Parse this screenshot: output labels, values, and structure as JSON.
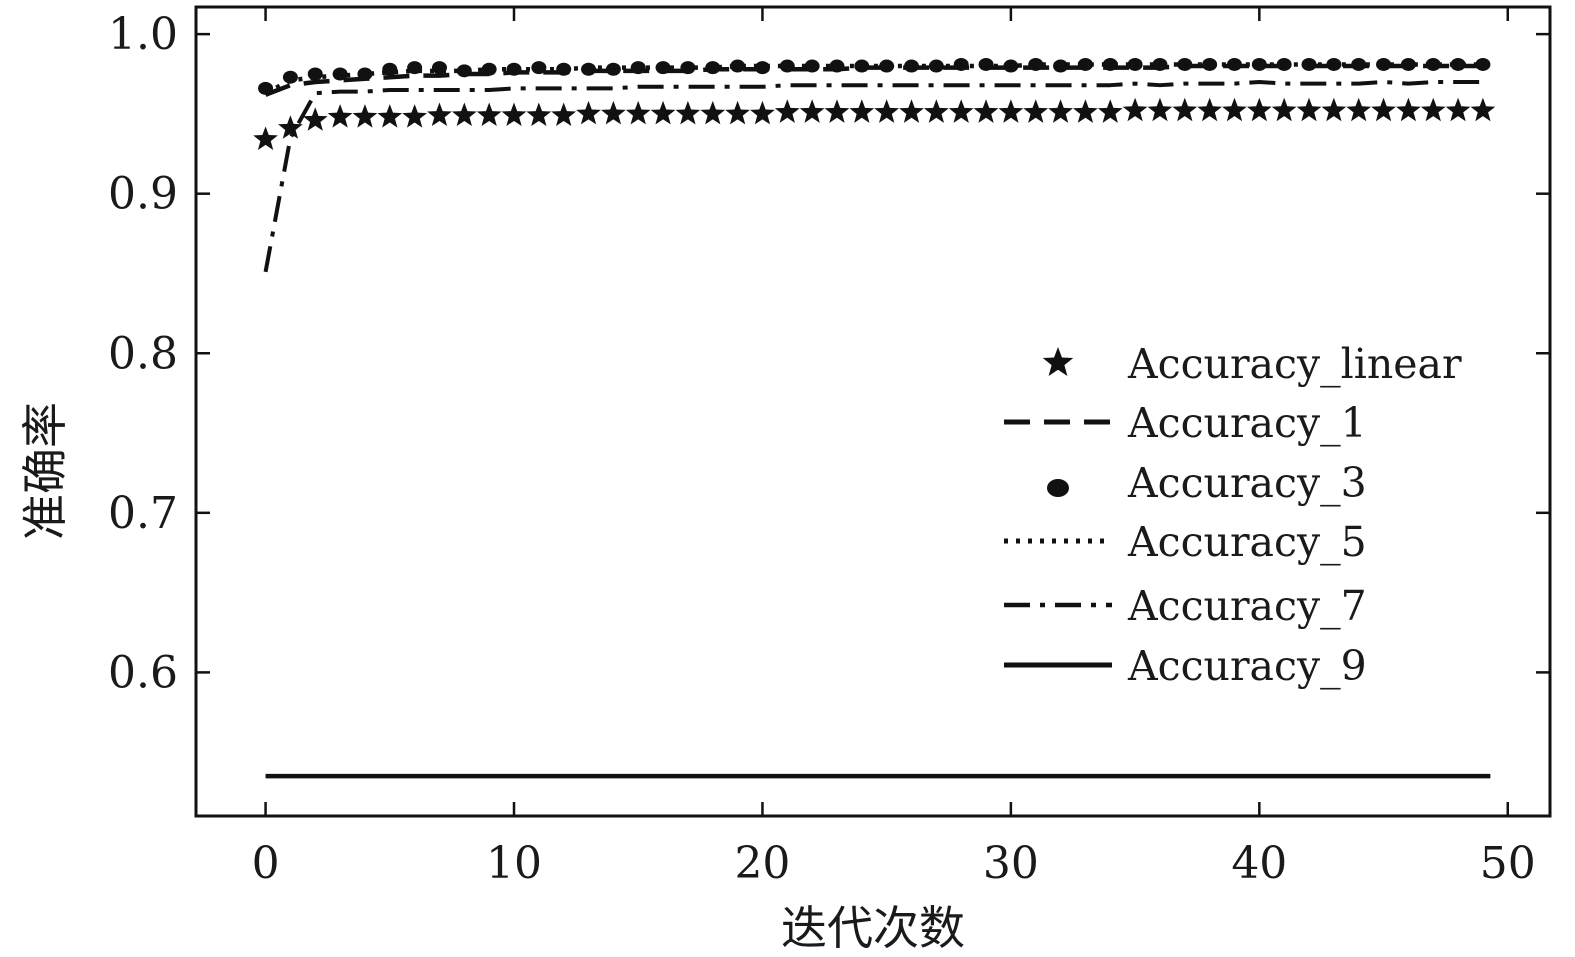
{
  "chart_data": {
    "type": "line",
    "title": "",
    "xlabel": "迭代次数",
    "ylabel": "准确率",
    "xlim": [
      -2.8,
      51.7
    ],
    "ylim": [
      0.51,
      1.017
    ],
    "xticks": [
      0,
      10,
      20,
      30,
      40,
      50
    ],
    "yticks": [
      0.6,
      0.7,
      0.8,
      0.9,
      1.0
    ],
    "xtick_labels": [
      "0",
      "10",
      "20",
      "30",
      "40",
      "50"
    ],
    "ytick_labels": [
      "0.6",
      "0.7",
      "0.8",
      "0.9",
      "1.0"
    ],
    "grid": false,
    "legend_position": "center-right",
    "colors": {
      "ink": "#111111",
      "background": "#ffffff"
    },
    "series": [
      {
        "name": "Accuracy_linear",
        "style": "star",
        "x": [
          0,
          1,
          2,
          3,
          4,
          5,
          6,
          7,
          8,
          9,
          10,
          11,
          12,
          13,
          14,
          15,
          16,
          17,
          18,
          19,
          20,
          21,
          22,
          23,
          24,
          25,
          26,
          27,
          28,
          29,
          30,
          31,
          32,
          33,
          34,
          35,
          36,
          37,
          38,
          39,
          40,
          41,
          42,
          43,
          44,
          45,
          46,
          47,
          48,
          49
        ],
        "values": [
          0.934,
          0.941,
          0.946,
          0.948,
          0.948,
          0.948,
          0.948,
          0.949,
          0.949,
          0.949,
          0.949,
          0.949,
          0.949,
          0.95,
          0.95,
          0.95,
          0.95,
          0.95,
          0.95,
          0.95,
          0.95,
          0.951,
          0.951,
          0.951,
          0.951,
          0.951,
          0.951,
          0.951,
          0.951,
          0.951,
          0.951,
          0.951,
          0.951,
          0.951,
          0.951,
          0.952,
          0.952,
          0.952,
          0.952,
          0.952,
          0.952,
          0.952,
          0.952,
          0.952,
          0.952,
          0.952,
          0.952,
          0.952,
          0.952,
          0.952
        ]
      },
      {
        "name": "Accuracy_1",
        "style": "dashed",
        "x": [
          0,
          1,
          2,
          3,
          4,
          5,
          6,
          7,
          8,
          9,
          10,
          11,
          12,
          13,
          14,
          15,
          16,
          17,
          18,
          19,
          20,
          21,
          22,
          23,
          24,
          25,
          26,
          27,
          28,
          29,
          30,
          31,
          32,
          33,
          34,
          35,
          36,
          37,
          38,
          39,
          40,
          41,
          42,
          43,
          44,
          45,
          46,
          47,
          48,
          49
        ],
        "values": [
          0.962,
          0.968,
          0.97,
          0.971,
          0.972,
          0.973,
          0.974,
          0.974,
          0.975,
          0.975,
          0.976,
          0.976,
          0.976,
          0.977,
          0.977,
          0.977,
          0.977,
          0.977,
          0.978,
          0.978,
          0.978,
          0.978,
          0.978,
          0.978,
          0.979,
          0.979,
          0.979,
          0.979,
          0.979,
          0.979,
          0.979,
          0.979,
          0.979,
          0.979,
          0.979,
          0.979,
          0.979,
          0.98,
          0.98,
          0.98,
          0.98,
          0.98,
          0.98,
          0.98,
          0.98,
          0.98,
          0.98,
          0.98,
          0.98,
          0.98
        ]
      },
      {
        "name": "Accuracy_3",
        "style": "circle",
        "x": [
          0,
          1,
          2,
          3,
          4,
          5,
          6,
          7,
          8,
          9,
          10,
          11,
          12,
          13,
          14,
          15,
          16,
          17,
          18,
          19,
          20,
          21,
          22,
          23,
          24,
          25,
          26,
          27,
          28,
          29,
          30,
          31,
          32,
          33,
          34,
          35,
          36,
          37,
          38,
          39,
          40,
          41,
          42,
          43,
          44,
          45,
          46,
          47,
          48,
          49
        ],
        "values": [
          0.966,
          0.973,
          0.975,
          0.975,
          0.975,
          0.978,
          0.979,
          0.979,
          0.977,
          0.978,
          0.978,
          0.979,
          0.978,
          0.978,
          0.978,
          0.979,
          0.979,
          0.979,
          0.979,
          0.98,
          0.979,
          0.98,
          0.98,
          0.98,
          0.98,
          0.98,
          0.98,
          0.98,
          0.981,
          0.981,
          0.98,
          0.981,
          0.98,
          0.981,
          0.981,
          0.981,
          0.981,
          0.981,
          0.981,
          0.981,
          0.981,
          0.981,
          0.981,
          0.981,
          0.981,
          0.981,
          0.981,
          0.981,
          0.981,
          0.981
        ]
      },
      {
        "name": "Accuracy_5",
        "style": "dotted",
        "x": [
          0,
          1,
          2,
          3,
          4,
          5,
          6,
          7,
          8,
          9,
          10,
          11,
          12,
          13,
          14,
          15,
          16,
          17,
          18,
          19,
          20,
          21,
          22,
          23,
          24,
          25,
          26,
          27,
          28,
          29,
          30,
          31,
          32,
          33,
          34,
          35,
          36,
          37,
          38,
          39,
          40,
          41,
          42,
          43,
          44,
          45,
          46,
          47,
          48,
          49
        ],
        "values": [
          0.963,
          0.971,
          0.973,
          0.974,
          0.975,
          0.976,
          0.977,
          0.977,
          0.977,
          0.978,
          0.978,
          0.978,
          0.978,
          0.979,
          0.979,
          0.979,
          0.979,
          0.979,
          0.979,
          0.98,
          0.98,
          0.98,
          0.98,
          0.98,
          0.98,
          0.98,
          0.98,
          0.98,
          0.98,
          0.98,
          0.98,
          0.981,
          0.981,
          0.981,
          0.981,
          0.981,
          0.981,
          0.981,
          0.981,
          0.981,
          0.981,
          0.981,
          0.981,
          0.981,
          0.981,
          0.981,
          0.981,
          0.981,
          0.981,
          0.981
        ]
      },
      {
        "name": "Accuracy_7",
        "style": "dashdot",
        "x": [
          0,
          1,
          2,
          3,
          4,
          5,
          6,
          7,
          8,
          9,
          10,
          11,
          12,
          13,
          14,
          15,
          16,
          17,
          18,
          19,
          20,
          21,
          22,
          23,
          24,
          25,
          26,
          27,
          28,
          29,
          30,
          31,
          32,
          33,
          34,
          35,
          36,
          37,
          38,
          39,
          40,
          41,
          42,
          43,
          44,
          45,
          46,
          47,
          48,
          49
        ],
        "values": [
          0.851,
          0.935,
          0.963,
          0.964,
          0.964,
          0.965,
          0.965,
          0.965,
          0.965,
          0.965,
          0.966,
          0.966,
          0.966,
          0.966,
          0.966,
          0.967,
          0.967,
          0.967,
          0.967,
          0.967,
          0.967,
          0.968,
          0.968,
          0.968,
          0.968,
          0.968,
          0.968,
          0.968,
          0.968,
          0.968,
          0.968,
          0.968,
          0.968,
          0.968,
          0.968,
          0.969,
          0.968,
          0.969,
          0.969,
          0.969,
          0.97,
          0.969,
          0.969,
          0.969,
          0.969,
          0.97,
          0.969,
          0.97,
          0.97,
          0.97
        ]
      },
      {
        "name": "Accuracy_9",
        "style": "solid",
        "x": [
          0,
          49.3
        ],
        "values": [
          0.535,
          0.535
        ]
      }
    ]
  }
}
